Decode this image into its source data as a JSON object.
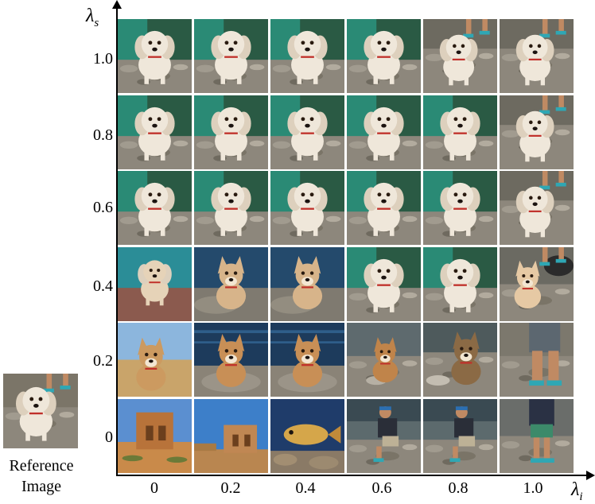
{
  "axes": {
    "y_title": "λ",
    "y_title_sub": "s",
    "x_title": "λ",
    "x_title_sub": "i"
  },
  "row_ticks": [
    "1.0",
    "0.8",
    "0.6",
    "0.4",
    "0.2",
    "0"
  ],
  "col_ticks": [
    "0",
    "0.2",
    "0.4",
    "0.6",
    "0.8",
    "1.0"
  ],
  "reference": {
    "line1": "Reference",
    "line2": "Image"
  },
  "grid": [
    [
      "fluffy-dog",
      "fluffy-dog",
      "fluffy-dog",
      "fluffy-dog",
      "fluffy-dog-legs",
      "fluffy-dog-legs"
    ],
    [
      "fluffy-dog",
      "fluffy-dog",
      "fluffy-dog",
      "fluffy-dog",
      "fluffy-dog",
      "fluffy-dog-legs"
    ],
    [
      "fluffy-dog",
      "fluffy-dog",
      "fluffy-dog",
      "fluffy-dog",
      "fluffy-dog",
      "fluffy-dog-legs"
    ],
    [
      "small-dog-teal",
      "pointy-dog",
      "pointy-dog",
      "fluffy-dog",
      "fluffy-dog",
      "chihuahua-legs"
    ],
    [
      "shiba-desert",
      "shiba-water",
      "shiba-water",
      "tan-dog-rocks",
      "big-dog-rocks",
      "person-legs"
    ],
    [
      "desert-ruins",
      "desert-ruins-sky",
      "fish",
      "person-crouch",
      "person-crouch",
      "person-standing"
    ]
  ],
  "colors": {
    "axis": "#000000",
    "teal_bg": "#2a8a75",
    "water": "#1d3b5c",
    "rocks": "#8a8478",
    "dog_white": "#efe7da",
    "dog_tan": "#c89a6a",
    "sky": "#3d7fc9",
    "sand": "#c98a4a"
  }
}
